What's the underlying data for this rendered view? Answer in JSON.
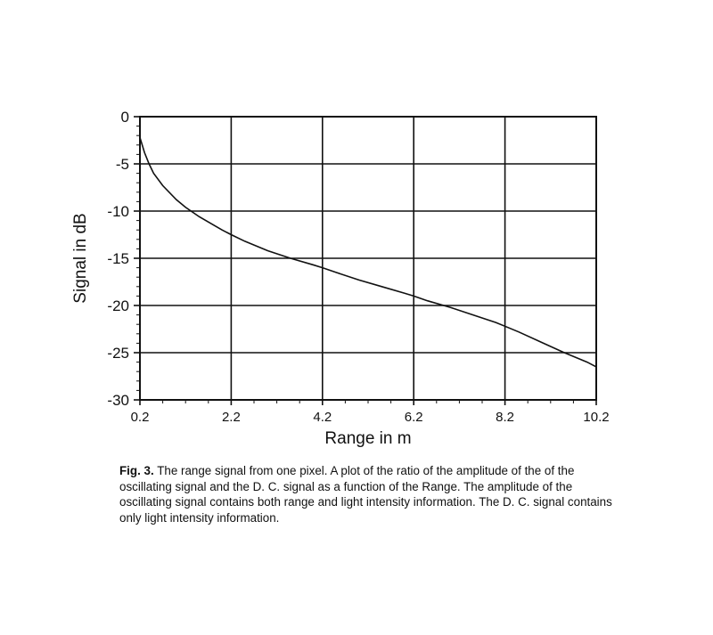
{
  "chart_data": {
    "type": "line",
    "xlabel": "Range in m",
    "ylabel": "Signal in dB",
    "xlim": [
      0.2,
      10.2
    ],
    "ylim": [
      -30,
      0
    ],
    "x_ticks": [
      "0.2",
      "2.2",
      "4.2",
      "6.2",
      "8.2",
      "10.2"
    ],
    "y_ticks": [
      "0",
      "-5",
      "-10",
      "-15",
      "-20",
      "-25",
      "-30"
    ],
    "grid": true,
    "series": [
      {
        "x": [
          0.2,
          0.3,
          0.4,
          0.5,
          0.7,
          1.0,
          1.2,
          1.5,
          2.0,
          2.2,
          2.5,
          3.0,
          3.5,
          4.0,
          4.2,
          4.5,
          5.0,
          5.5,
          6.0,
          6.2,
          6.5,
          7.0,
          7.5,
          8.0,
          8.2,
          8.5,
          9.0,
          9.5,
          10.0,
          10.2
        ],
        "y": [
          -2.2,
          -3.8,
          -5.0,
          -6.0,
          -7.3,
          -8.8,
          -9.6,
          -10.6,
          -12.0,
          -12.5,
          -13.2,
          -14.2,
          -15.0,
          -15.7,
          -16.0,
          -16.5,
          -17.3,
          -18.0,
          -18.7,
          -19.0,
          -19.5,
          -20.2,
          -21.0,
          -21.8,
          -22.2,
          -22.8,
          -23.9,
          -25.0,
          -26.0,
          -26.5
        ]
      }
    ]
  },
  "caption": {
    "label": "Fig. 3.",
    "text": "The range signal from one pixel. A plot of the ratio of the amplitude of the of the oscillating signal and the D. C. signal as a function of the Range. The amplitude of the oscillating signal contains both range and light intensity information. The D. C. signal contains only light intensity information."
  }
}
